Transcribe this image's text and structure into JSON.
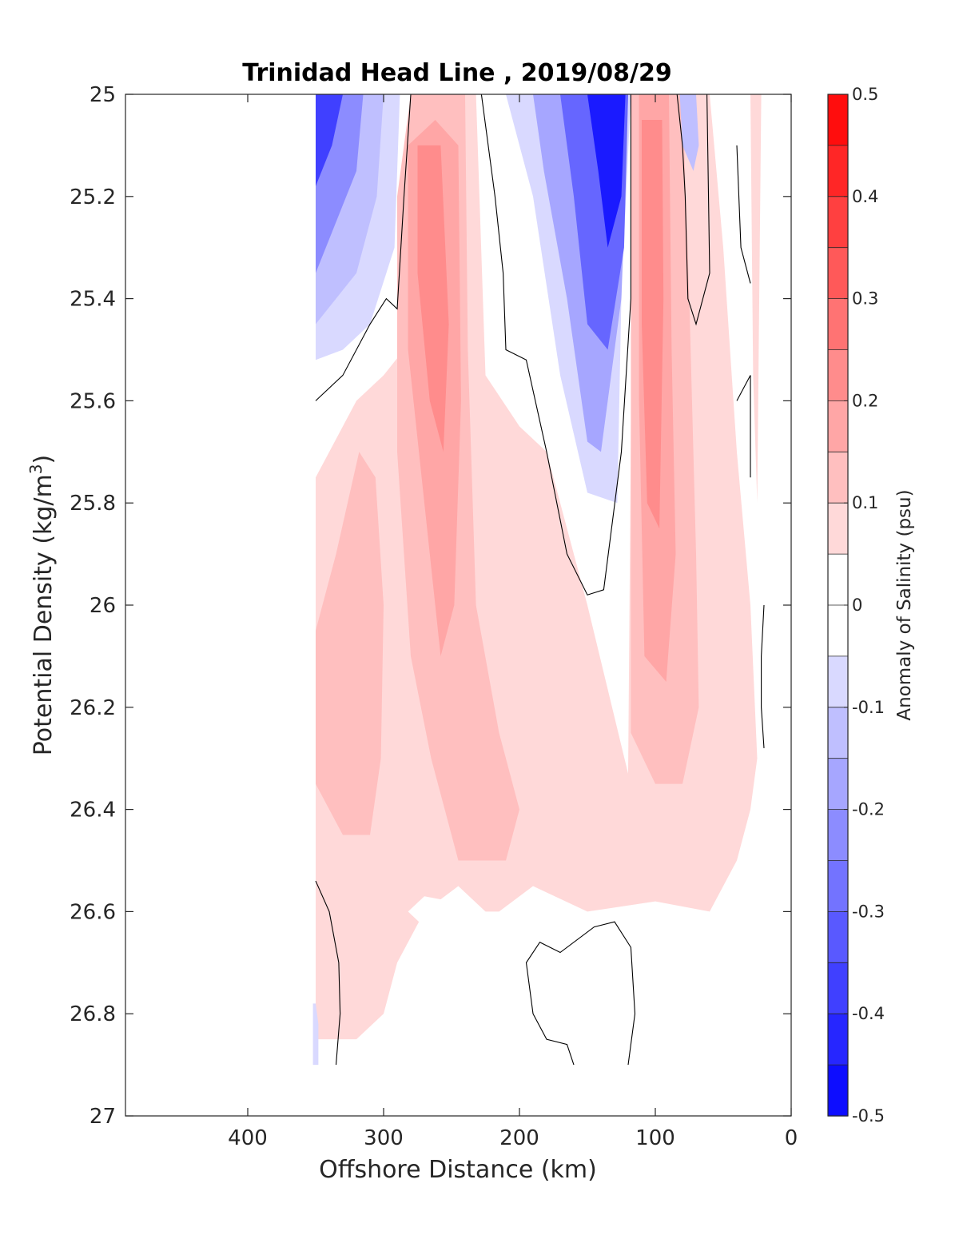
{
  "chart_data": {
    "type": "heatmap",
    "subtype": "filled-contour",
    "title": "Trinidad Head Line , 2019/08/29",
    "xlabel": "Offshore Distance (km)",
    "ylabel_main": "Potential Density (kg/m",
    "ylabel_sup": "3",
    "ylabel_end": ")",
    "xlim": [
      490,
      0
    ],
    "ylim": [
      25,
      27
    ],
    "x_reversed": true,
    "y_reversed": true,
    "grid": false,
    "xticks": [
      400,
      300,
      200,
      100,
      0
    ],
    "xtick_labels": [
      "400",
      "300",
      "200",
      "100",
      "0"
    ],
    "yticks": [
      25,
      25.2,
      25.4,
      25.6,
      25.8,
      26,
      26.2,
      26.4,
      26.6,
      26.8,
      27
    ],
    "ytick_labels": [
      "25",
      "25.2",
      "25.4",
      "25.6",
      "25.8",
      "26",
      "26.2",
      "26.4",
      "26.6",
      "26.8",
      "27"
    ],
    "colorbar": {
      "label": "Anomaly of Salinity (psu)",
      "range": [
        -0.5,
        0.5
      ],
      "step": 0.05,
      "ticks": [
        0.5,
        0.4,
        0.3,
        0.2,
        0.1,
        0,
        -0.1,
        -0.2,
        -0.3,
        -0.4,
        -0.5
      ],
      "tick_labels": [
        "0.5",
        "0.4",
        "0.3",
        "0.2",
        "0.1",
        "0",
        "-0.1",
        "-0.2",
        "-0.3",
        "-0.4",
        "-0.5"
      ],
      "colormap": "blue-white-red",
      "negative_color": "#0000ff",
      "positive_color": "#ff0000",
      "zero_color": "#ffffff"
    },
    "data_extent_km": [
      0,
      350
    ],
    "features": [
      {
        "kind": "fresh anomaly",
        "x_km": [
          288,
          350
        ],
        "y": [
          25.0,
          25.55
        ],
        "min_value": -0.4
      },
      {
        "kind": "salty anomaly",
        "x_km": [
          230,
          290
        ],
        "y": [
          25.0,
          26.2
        ],
        "max_value": 0.2
      },
      {
        "kind": "salty anomaly",
        "x_km": [
          270,
          350
        ],
        "y": [
          25.7,
          26.45
        ],
        "max_value": 0.15
      },
      {
        "kind": "fresh anomaly",
        "x_km": [
          118,
          210
        ],
        "y": [
          25.0,
          25.8
        ],
        "min_value": -0.45
      },
      {
        "kind": "salty anomaly",
        "x_km": [
          75,
          118
        ],
        "y": [
          25.0,
          26.4
        ],
        "max_value": 0.25
      },
      {
        "kind": "fresh anomaly",
        "x_km": [
          68,
          82
        ],
        "y": [
          25.0,
          25.15
        ],
        "min_value": -0.15
      },
      {
        "kind": "weak salty anomaly",
        "x_km": [
          20,
          350
        ],
        "y": [
          25.5,
          26.85
        ],
        "max_value": 0.1
      }
    ],
    "contour_levels": [
      0
    ]
  }
}
